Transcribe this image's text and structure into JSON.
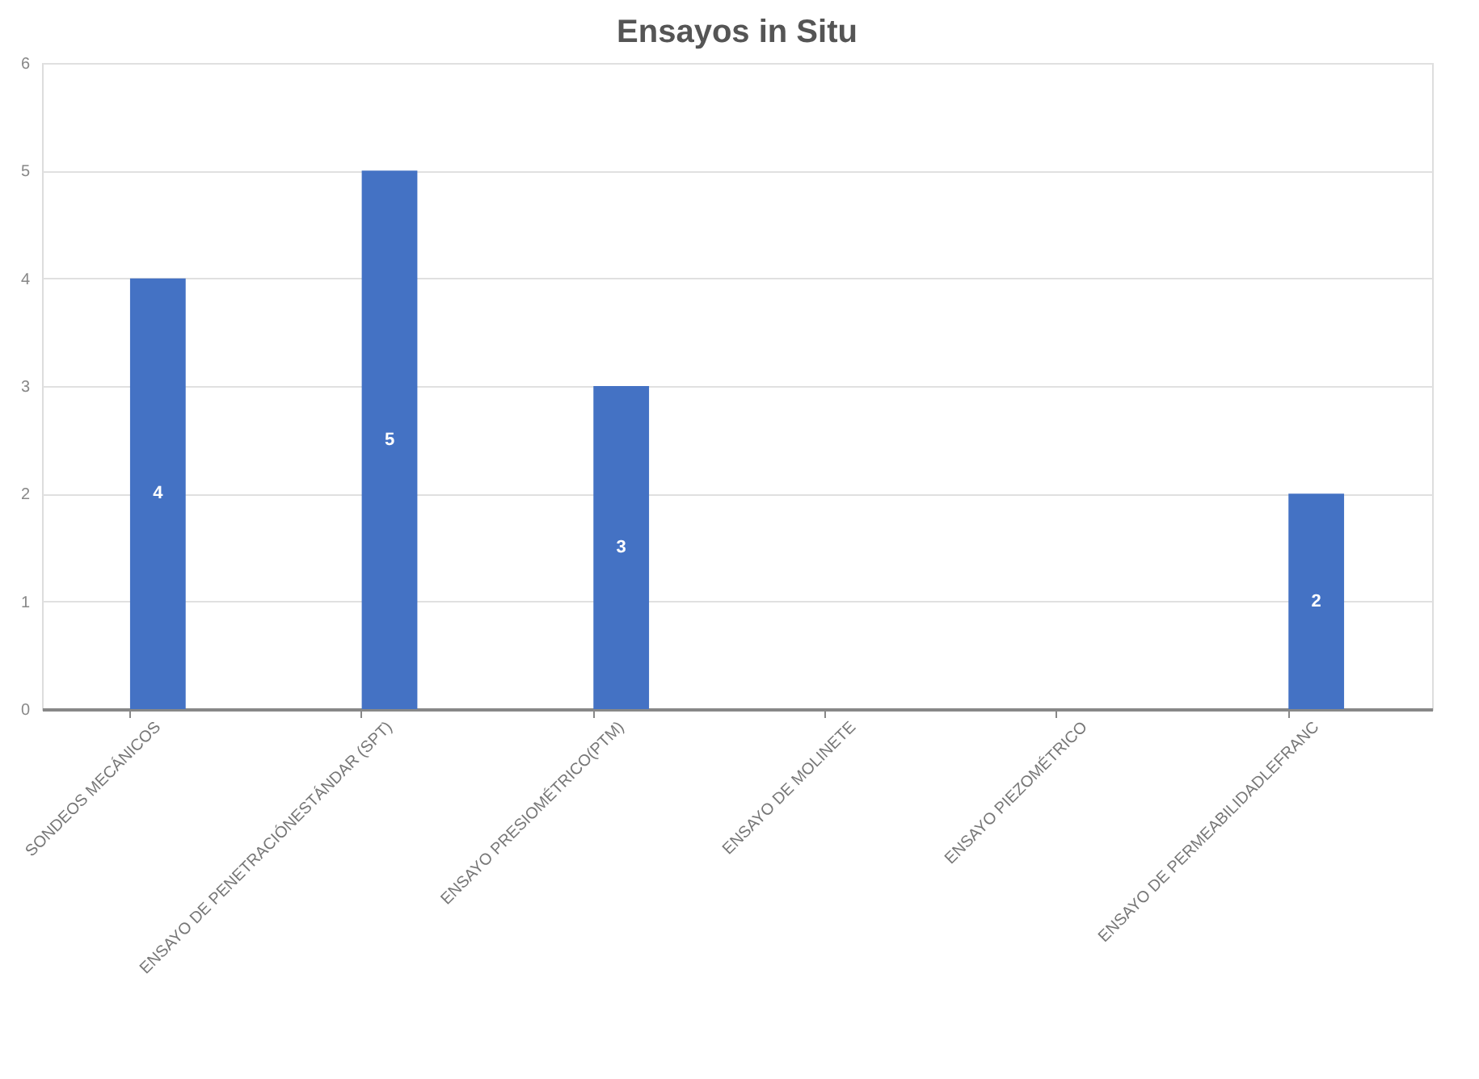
{
  "chart_data": {
    "type": "bar",
    "title": "Ensayos in Situ",
    "categories": [
      "SONDEOS MECÁNICOS",
      "ENSAYO DE PENETRACIÓNESTÁNDAR (SPT)",
      "ENSAYO PRESIOMÉTRICO(PTM)",
      "ENSAYO DE MOLINETE",
      "ENSAYO PIEZOMÉTRICO",
      "ENSAYO DE PERMEABILIDADLEFRANC"
    ],
    "values": [
      4,
      5,
      3,
      0,
      0,
      2
    ],
    "value_labels": [
      "4",
      "5",
      "3",
      null,
      null,
      "2"
    ],
    "color": "#4472c4",
    "ylim": [
      0,
      6
    ],
    "yticks": [
      0,
      1,
      2,
      3,
      4,
      5,
      6
    ],
    "grid": "y"
  }
}
